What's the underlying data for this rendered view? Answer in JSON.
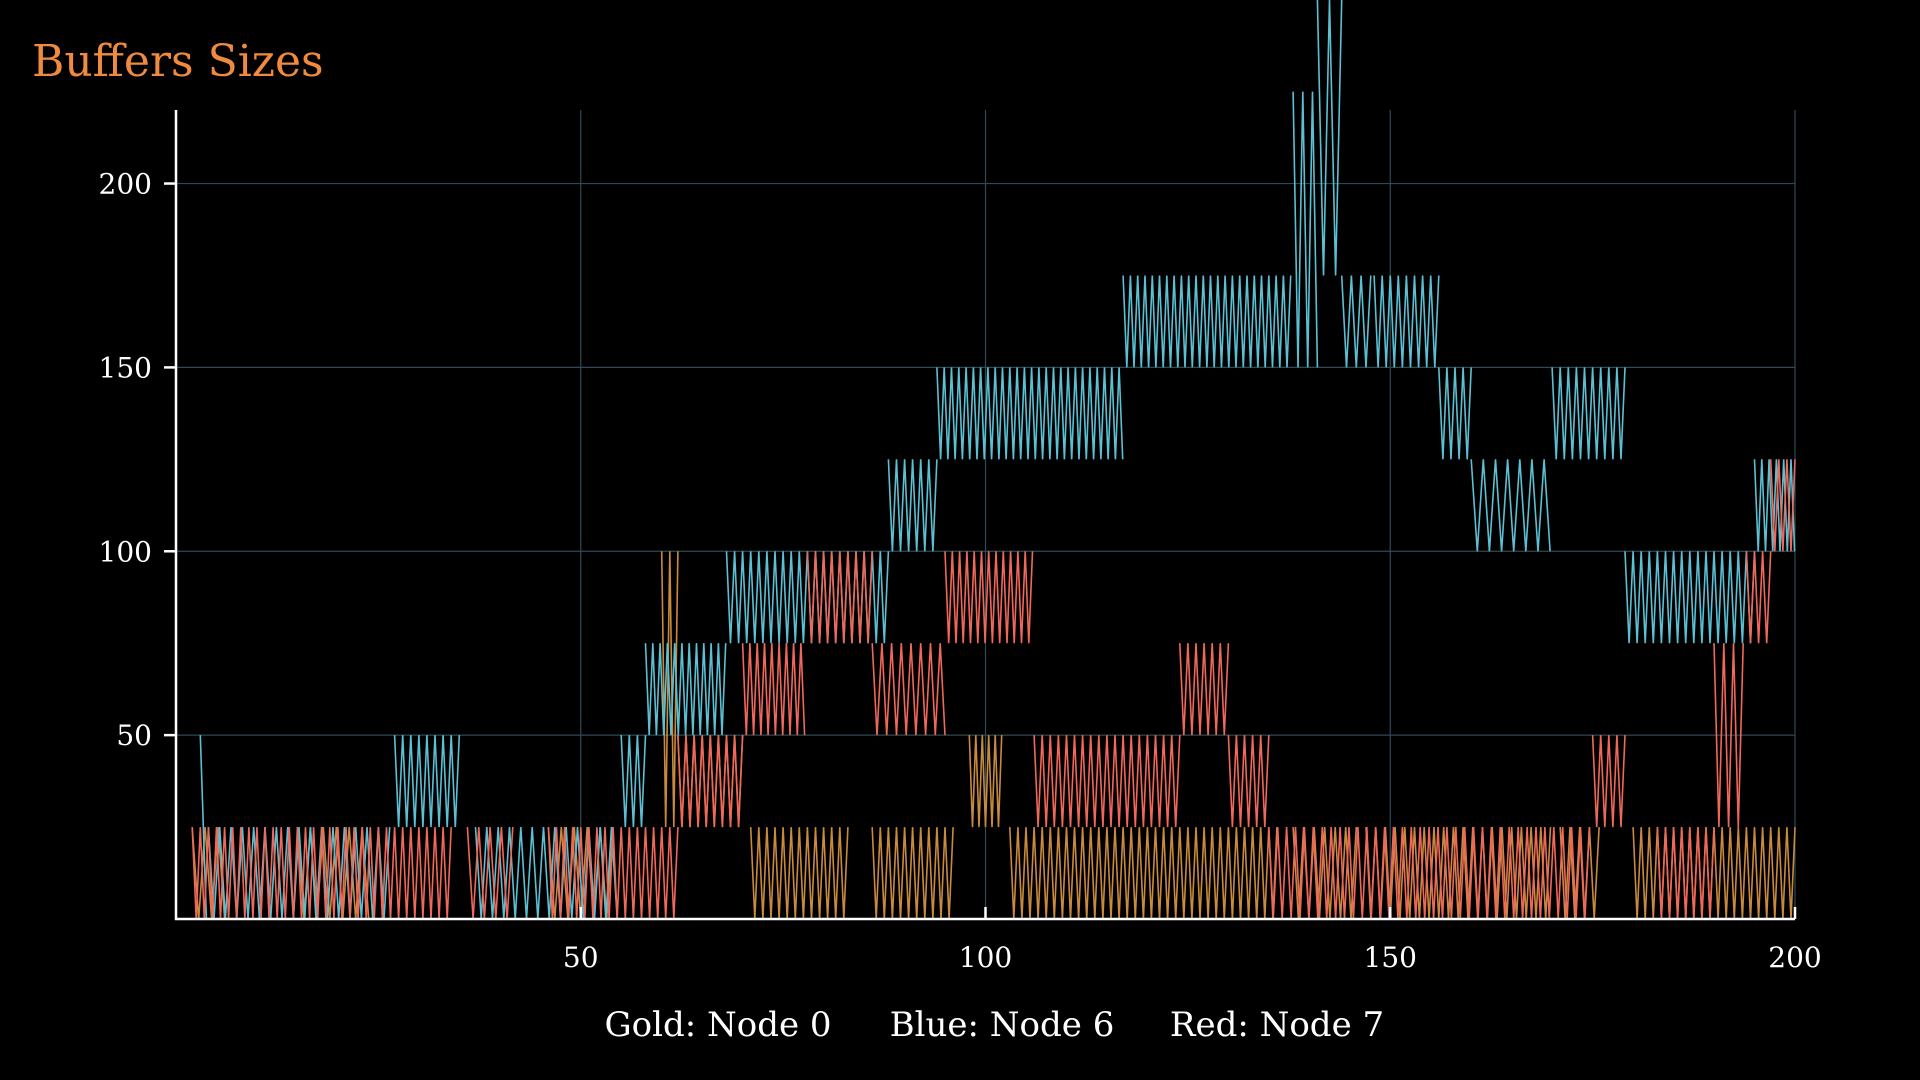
{
  "chart_data": {
    "type": "line",
    "title": "Buffers Sizes",
    "xlabel": "",
    "ylabel": "",
    "xlim": [
      0,
      200
    ],
    "ylim": [
      0,
      220
    ],
    "x_ticks": [
      50,
      100,
      150,
      200
    ],
    "y_ticks": [
      50,
      100,
      150,
      200
    ],
    "grid": true,
    "legend_placement": "bottom-center",
    "legend": [
      "Gold: Node 0",
      "Blue: Node 6",
      "Red: Node 7"
    ],
    "background": "#000000",
    "axis_color": "#ffffff",
    "grid_color": "#2e4a55",
    "series": [
      {
        "color": "#c98a3e",
        "segments": [
          {
            "x0": 2,
            "x1": 6,
            "lo": 0,
            "hi": 25,
            "period": 1.6
          },
          {
            "x0": 15,
            "x1": 24,
            "lo": 0,
            "hi": 25,
            "period": 1.6
          },
          {
            "x0": 46,
            "x1": 54,
            "lo": 0,
            "hi": 25,
            "period": 1.6
          },
          {
            "x0": 60,
            "x1": 62,
            "lo": 25,
            "hi": 100,
            "period": 1.0
          },
          {
            "x0": 62,
            "x1": 70,
            "lo": 25,
            "hi": 50,
            "period": 1.0
          },
          {
            "x0": 71,
            "x1": 83,
            "lo": 0,
            "hi": 25,
            "period": 1.0
          },
          {
            "x0": 86,
            "x1": 96,
            "lo": 0,
            "hi": 25,
            "period": 1.0
          },
          {
            "x0": 98,
            "x1": 102,
            "lo": 25,
            "hi": 50,
            "period": 0.8
          },
          {
            "x0": 103,
            "x1": 136,
            "lo": 0,
            "hi": 25,
            "period": 1.0
          },
          {
            "x0": 138,
            "x1": 146,
            "lo": 0,
            "hi": 25,
            "period": 1.3
          },
          {
            "x0": 147,
            "x1": 170,
            "lo": 0,
            "hi": 25,
            "period": 1.2
          },
          {
            "x0": 171,
            "x1": 176,
            "lo": 0,
            "hi": 25,
            "period": 1.2
          },
          {
            "x0": 180,
            "x1": 200,
            "lo": 0,
            "hi": 25,
            "period": 1.0
          }
        ]
      },
      {
        "color": "#5bc0d4",
        "segments": [
          {
            "x0": 3,
            "x1": 4,
            "lo": 0,
            "hi": 50,
            "period": 1.5
          },
          {
            "x0": 4,
            "x1": 27,
            "lo": 0,
            "hi": 25,
            "period": 1.4
          },
          {
            "x0": 27,
            "x1": 35,
            "lo": 25,
            "hi": 50,
            "period": 1.0
          },
          {
            "x0": 37,
            "x1": 55,
            "lo": 0,
            "hi": 25,
            "period": 1.4
          },
          {
            "x0": 55,
            "x1": 58,
            "lo": 25,
            "hi": 50,
            "period": 1.0
          },
          {
            "x0": 58,
            "x1": 68,
            "lo": 50,
            "hi": 75,
            "period": 0.9
          },
          {
            "x0": 68,
            "x1": 88,
            "lo": 75,
            "hi": 100,
            "period": 1.0
          },
          {
            "x0": 88,
            "x1": 94,
            "lo": 100,
            "hi": 125,
            "period": 1.0
          },
          {
            "x0": 94,
            "x1": 117,
            "lo": 125,
            "hi": 150,
            "period": 0.9
          },
          {
            "x0": 117,
            "x1": 138,
            "lo": 150,
            "hi": 175,
            "period": 0.9
          },
          {
            "x0": 138,
            "x1": 141,
            "lo": 150,
            "hi": 225,
            "period": 1.2
          },
          {
            "x0": 141,
            "x1": 144,
            "lo": 175,
            "hi": 250,
            "period": 1.5
          },
          {
            "x0": 144,
            "x1": 148,
            "lo": 150,
            "hi": 175,
            "period": 1.2
          },
          {
            "x0": 148,
            "x1": 156,
            "lo": 150,
            "hi": 175,
            "period": 1.0
          },
          {
            "x0": 156,
            "x1": 160,
            "lo": 125,
            "hi": 150,
            "period": 1.0
          },
          {
            "x0": 160,
            "x1": 170,
            "lo": 100,
            "hi": 125,
            "period": 1.5
          },
          {
            "x0": 170,
            "x1": 179,
            "lo": 125,
            "hi": 150,
            "period": 1.0
          },
          {
            "x0": 179,
            "x1": 195,
            "lo": 75,
            "hi": 100,
            "period": 1.0
          },
          {
            "x0": 195,
            "x1": 200,
            "lo": 100,
            "hi": 125,
            "period": 0.9
          }
        ]
      },
      {
        "color": "#f0685a",
        "segments": [
          {
            "x0": 2,
            "x1": 34,
            "lo": 0,
            "hi": 25,
            "period": 1.0
          },
          {
            "x0": 36,
            "x1": 42,
            "lo": 0,
            "hi": 25,
            "period": 1.4
          },
          {
            "x0": 46,
            "x1": 62,
            "lo": 0,
            "hi": 25,
            "period": 1.0
          },
          {
            "x0": 62,
            "x1": 70,
            "lo": 25,
            "hi": 50,
            "period": 1.0
          },
          {
            "x0": 70,
            "x1": 78,
            "lo": 50,
            "hi": 75,
            "period": 0.9
          },
          {
            "x0": 78,
            "x1": 86,
            "lo": 75,
            "hi": 100,
            "period": 1.0
          },
          {
            "x0": 86,
            "x1": 95,
            "lo": 50,
            "hi": 75,
            "period": 1.2
          },
          {
            "x0": 95,
            "x1": 106,
            "lo": 75,
            "hi": 100,
            "period": 0.9
          },
          {
            "x0": 106,
            "x1": 124,
            "lo": 25,
            "hi": 50,
            "period": 1.0
          },
          {
            "x0": 124,
            "x1": 130,
            "lo": 50,
            "hi": 75,
            "period": 1.0
          },
          {
            "x0": 130,
            "x1": 135,
            "lo": 25,
            "hi": 50,
            "period": 1.0
          },
          {
            "x0": 135,
            "x1": 175,
            "lo": 0,
            "hi": 25,
            "period": 1.1
          },
          {
            "x0": 175,
            "x1": 179,
            "lo": 25,
            "hi": 50,
            "period": 1.0
          },
          {
            "x0": 183,
            "x1": 190,
            "lo": 0,
            "hi": 25,
            "period": 1.0
          },
          {
            "x0": 190,
            "x1": 194,
            "lo": 25,
            "hi": 75,
            "period": 1.2
          },
          {
            "x0": 194,
            "x1": 197,
            "lo": 75,
            "hi": 100,
            "period": 1.0
          },
          {
            "x0": 197,
            "x1": 200,
            "lo": 100,
            "hi": 125,
            "period": 1.0
          }
        ]
      }
    ]
  }
}
